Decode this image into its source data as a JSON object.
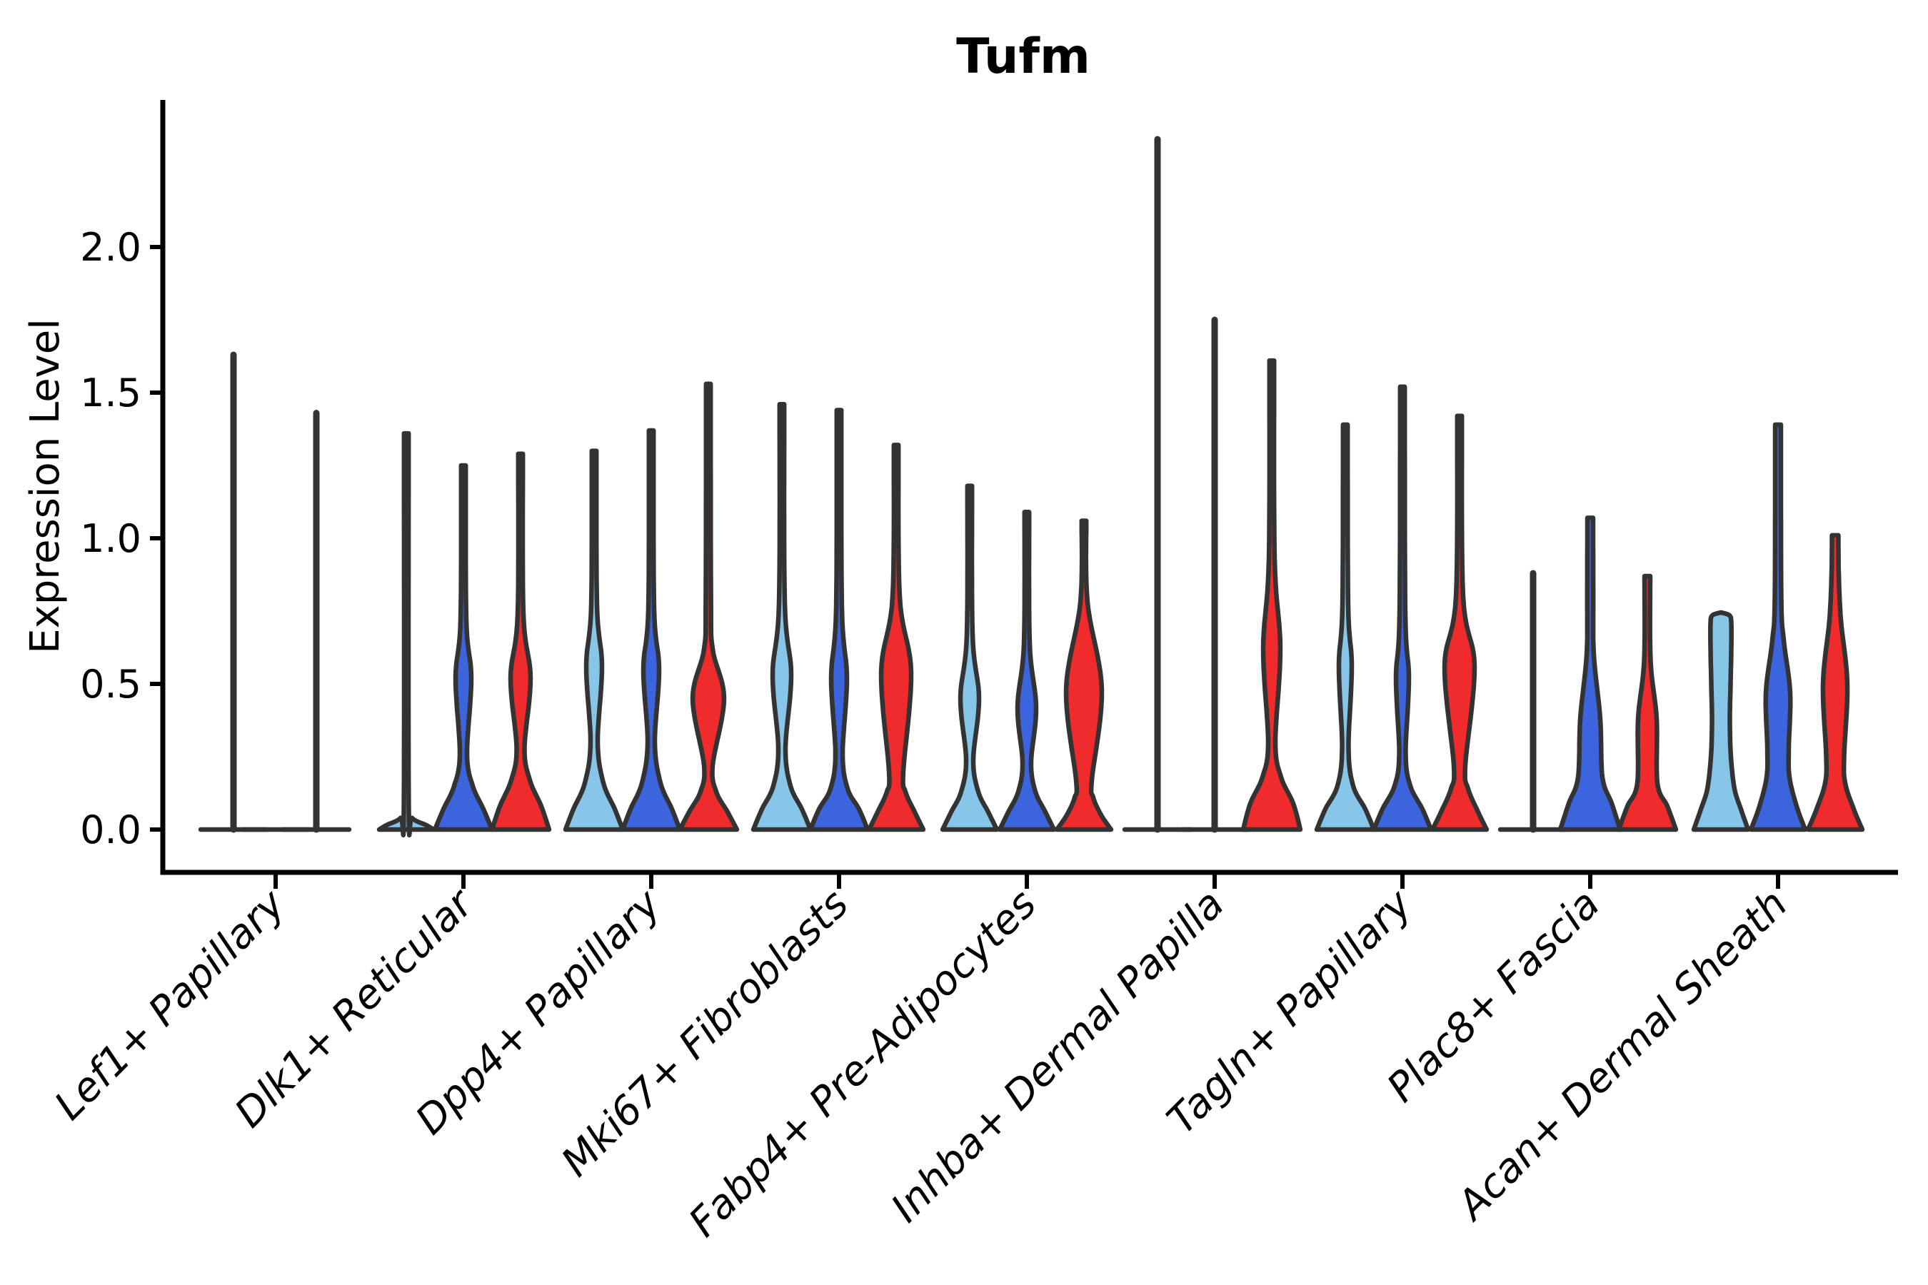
{
  "title": "Tufm",
  "ylabel": "Expression Level",
  "chart_data": {
    "type": "violin",
    "title": "Tufm",
    "xlabel": "",
    "ylabel": "Expression Level",
    "ylim": [
      0,
      2.5
    ],
    "grid": false,
    "legend": "none",
    "yticks": [
      {
        "value": 0.0,
        "label": "0.0"
      },
      {
        "value": 0.5,
        "label": "0.5"
      },
      {
        "value": 1.0,
        "label": "1.0"
      },
      {
        "value": 1.5,
        "label": "1.5"
      },
      {
        "value": 2.0,
        "label": "2.0"
      }
    ],
    "colors": {
      "light_blue": "#87C6E9",
      "blue": "#3C64DC",
      "red": "#EF2B2B",
      "outline": "#333333"
    },
    "categories": [
      "Lef1+ Papillary",
      "Dlk1+ Reticular",
      "Dpp4+ Papillary",
      "Mki67+ Fibroblasts",
      "Fabp4+ Pre-Adipocytes",
      "Inhba+ Dermal Papilla",
      "Tagln+ Papillary",
      "Plac8+ Fascia",
      "Acan+ Dermal Sheath"
    ],
    "series_max_expression": [
      {
        "category": "Lef1+ Papillary",
        "values": [
          1.63,
          0.0,
          1.43
        ]
      },
      {
        "category": "Dlk1+ Reticular",
        "values": [
          1.36,
          1.25,
          1.29
        ]
      },
      {
        "category": "Dpp4+ Papillary",
        "values": [
          1.3,
          1.37,
          1.53
        ]
      },
      {
        "category": "Mki67+ Fibroblasts",
        "values": [
          1.46,
          1.44,
          1.32
        ]
      },
      {
        "category": "Fabp4+ Pre-Adipocytes",
        "values": [
          1.18,
          1.09,
          1.06
        ]
      },
      {
        "category": "Inhba+ Dermal Papilla",
        "values": [
          2.37,
          1.75,
          1.61
        ]
      },
      {
        "category": "Tagln+ Papillary",
        "values": [
          1.39,
          1.52,
          1.42
        ]
      },
      {
        "category": "Plac8+ Fascia",
        "values": [
          0.88,
          1.07,
          0.87
        ]
      },
      {
        "category": "Acan+ Dermal Sheath",
        "values": [
          0.74,
          1.39,
          1.01
        ]
      }
    ],
    "groups": [
      {
        "category": "Lef1+ Papillary",
        "violins": [
          {
            "color": "light_blue",
            "shape": "spike",
            "max": 1.63,
            "x_offset": -59
          },
          {
            "color": "blue",
            "shape": "flat",
            "max": 0.0,
            "x_offset": 0
          },
          {
            "color": "red",
            "shape": "spike",
            "max": 1.43,
            "x_offset": 57
          }
        ]
      },
      {
        "category": "Dlk1+ Reticular",
        "violins": [
          {
            "color": "light_blue",
            "shape": "body",
            "max": 1.36,
            "profile": [
              [
                0,
                38
              ],
              [
                0.015,
                28
              ],
              [
                0.04,
                8
              ],
              [
                0.09,
                3.4
              ],
              [
                1.36,
                3.2
              ]
            ]
          },
          {
            "color": "blue",
            "shape": "body",
            "max": 1.25,
            "profile": [
              [
                0,
                40
              ],
              [
                0.07,
                28
              ],
              [
                0.15,
                13
              ],
              [
                0.26,
                5
              ],
              [
                0.52,
                11
              ],
              [
                0.72,
                4
              ],
              [
                1.25,
                3.2
              ]
            ]
          },
          {
            "color": "red",
            "shape": "body",
            "max": 1.29,
            "profile": [
              [
                0,
                40
              ],
              [
                0.08,
                29
              ],
              [
                0.17,
                13
              ],
              [
                0.28,
                5.5
              ],
              [
                0.52,
                14
              ],
              [
                0.74,
                4
              ],
              [
                1.29,
                3.2
              ]
            ]
          }
        ]
      },
      {
        "category": "Dpp4+ Papillary",
        "violins": [
          {
            "color": "light_blue",
            "shape": "body",
            "max": 1.3,
            "profile": [
              [
                0,
                40
              ],
              [
                0.07,
                29
              ],
              [
                0.16,
                13
              ],
              [
                0.3,
                5
              ],
              [
                0.56,
                11
              ],
              [
                0.77,
                4
              ],
              [
                1.3,
                3.2
              ]
            ]
          },
          {
            "color": "blue",
            "shape": "body",
            "max": 1.37,
            "profile": [
              [
                0,
                40
              ],
              [
                0.07,
                29
              ],
              [
                0.16,
                13
              ],
              [
                0.3,
                5
              ],
              [
                0.55,
                11
              ],
              [
                0.76,
                4
              ],
              [
                1.37,
                3.2
              ]
            ]
          },
          {
            "color": "red",
            "shape": "body",
            "max": 1.53,
            "profile": [
              [
                0,
                40
              ],
              [
                0.06,
                27
              ],
              [
                0.13,
                11
              ],
              [
                0.22,
                6
              ],
              [
                0.45,
                22
              ],
              [
                0.62,
                6
              ],
              [
                0.8,
                3.6
              ],
              [
                1.53,
                3.2
              ]
            ]
          }
        ]
      },
      {
        "category": "Mki67+ Fibroblasts",
        "violins": [
          {
            "color": "light_blue",
            "shape": "body",
            "max": 1.46,
            "profile": [
              [
                0,
                40
              ],
              [
                0.07,
                28
              ],
              [
                0.15,
                12
              ],
              [
                0.28,
                5
              ],
              [
                0.53,
                13
              ],
              [
                0.78,
                4
              ],
              [
                1.46,
                3.2
              ]
            ]
          },
          {
            "color": "blue",
            "shape": "body",
            "max": 1.44,
            "profile": [
              [
                0,
                40
              ],
              [
                0.07,
                28
              ],
              [
                0.14,
                12
              ],
              [
                0.26,
                5
              ],
              [
                0.52,
                11
              ],
              [
                0.76,
                4
              ],
              [
                1.44,
                3.2
              ]
            ]
          },
          {
            "color": "red",
            "shape": "body",
            "max": 1.32,
            "profile": [
              [
                0,
                38
              ],
              [
                0.06,
                26
              ],
              [
                0.13,
                13
              ],
              [
                0.2,
                10
              ],
              [
                0.54,
                21
              ],
              [
                0.8,
                5
              ],
              [
                1.32,
                3.2
              ]
            ]
          }
        ]
      },
      {
        "category": "Fabp4+ Pre-Adipocytes",
        "violins": [
          {
            "color": "light_blue",
            "shape": "body",
            "max": 1.18,
            "profile": [
              [
                0,
                38
              ],
              [
                0.06,
                26
              ],
              [
                0.13,
                12
              ],
              [
                0.24,
                5
              ],
              [
                0.45,
                13
              ],
              [
                0.67,
                4
              ],
              [
                1.18,
                3.2
              ]
            ]
          },
          {
            "color": "blue",
            "shape": "body",
            "max": 1.09,
            "profile": [
              [
                0,
                38
              ],
              [
                0.06,
                26
              ],
              [
                0.13,
                12
              ],
              [
                0.23,
                6
              ],
              [
                0.42,
                13
              ],
              [
                0.64,
                4
              ],
              [
                1.09,
                3.2
              ]
            ]
          },
          {
            "color": "red",
            "shape": "body",
            "max": 1.06,
            "profile": [
              [
                0,
                38
              ],
              [
                0.05,
                24
              ],
              [
                0.11,
                13
              ],
              [
                0.17,
                11
              ],
              [
                0.48,
                25
              ],
              [
                0.78,
                5
              ],
              [
                1.06,
                3.2
              ]
            ]
          }
        ]
      },
      {
        "category": "Inhba+ Dermal Papilla",
        "violins": [
          {
            "color": "light_blue",
            "shape": "spike",
            "max": 2.37
          },
          {
            "color": "blue",
            "shape": "spike",
            "max": 1.75
          },
          {
            "color": "red",
            "shape": "body",
            "max": 1.61,
            "profile": [
              [
                0,
                40
              ],
              [
                0.09,
                30
              ],
              [
                0.18,
                13
              ],
              [
                0.3,
                5
              ],
              [
                0.62,
                12
              ],
              [
                0.93,
                4
              ],
              [
                1.61,
                3.2
              ]
            ]
          }
        ]
      },
      {
        "category": "Tagln+ Papillary",
        "violins": [
          {
            "color": "light_blue",
            "shape": "body",
            "max": 1.39,
            "profile": [
              [
                0,
                40
              ],
              [
                0.07,
                28
              ],
              [
                0.15,
                11
              ],
              [
                0.28,
                4.5
              ],
              [
                0.56,
                9
              ],
              [
                0.77,
                4
              ],
              [
                1.39,
                3.2
              ]
            ]
          },
          {
            "color": "blue",
            "shape": "body",
            "max": 1.52,
            "profile": [
              [
                0,
                40
              ],
              [
                0.07,
                28
              ],
              [
                0.15,
                11
              ],
              [
                0.26,
                4.5
              ],
              [
                0.52,
                9
              ],
              [
                0.74,
                4
              ],
              [
                1.52,
                3.2
              ]
            ]
          },
          {
            "color": "red",
            "shape": "body",
            "max": 1.42,
            "profile": [
              [
                0,
                38
              ],
              [
                0.06,
                26
              ],
              [
                0.14,
                12
              ],
              [
                0.22,
                8
              ],
              [
                0.56,
                21
              ],
              [
                0.8,
                5
              ],
              [
                1.42,
                3.2
              ]
            ]
          }
        ]
      },
      {
        "category": "Plac8+ Fascia",
        "violins": [
          {
            "color": "light_blue",
            "shape": "spike",
            "max": 0.88
          },
          {
            "color": "blue",
            "shape": "body",
            "max": 1.07,
            "profile": [
              [
                0,
                42
              ],
              [
                0.09,
                30
              ],
              [
                0.18,
                17
              ],
              [
                0.38,
                14
              ],
              [
                0.6,
                5
              ],
              [
                0.8,
                4.2
              ],
              [
                1.07,
                4
              ]
            ]
          },
          {
            "color": "red",
            "shape": "body",
            "max": 0.87,
            "profile": [
              [
                0,
                40
              ],
              [
                0.08,
                28
              ],
              [
                0.16,
                14
              ],
              [
                0.38,
                13
              ],
              [
                0.58,
                4.5
              ],
              [
                0.87,
                4
              ]
            ]
          }
        ]
      },
      {
        "category": "Acan+ Dermal Sheath",
        "violins": [
          {
            "color": "light_blue",
            "shape": "body",
            "max": 0.74,
            "profile": [
              [
                0,
                38
              ],
              [
                0.07,
                28
              ],
              [
                0.14,
                19
              ],
              [
                0.25,
                14
              ],
              [
                0.37,
                12.5
              ],
              [
                0.5,
                13.5
              ],
              [
                0.62,
                14.5
              ],
              [
                0.71,
                14.5
              ],
              [
                0.735,
                12
              ],
              [
                0.745,
                0.8
              ]
            ]
          },
          {
            "color": "blue",
            "shape": "body",
            "max": 1.39,
            "profile": [
              [
                0,
                38
              ],
              [
                0.08,
                26
              ],
              [
                0.18,
                16
              ],
              [
                0.28,
                15
              ],
              [
                0.47,
                17
              ],
              [
                0.65,
                8
              ],
              [
                0.8,
                4.5
              ],
              [
                1.39,
                4
              ]
            ]
          },
          {
            "color": "red",
            "shape": "body",
            "max": 1.01,
            "profile": [
              [
                0,
                38
              ],
              [
                0.07,
                26
              ],
              [
                0.16,
                14
              ],
              [
                0.25,
                12.5
              ],
              [
                0.5,
                17
              ],
              [
                0.72,
                8
              ],
              [
                0.88,
                5
              ],
              [
                1.01,
                4.5
              ]
            ]
          }
        ]
      }
    ]
  }
}
